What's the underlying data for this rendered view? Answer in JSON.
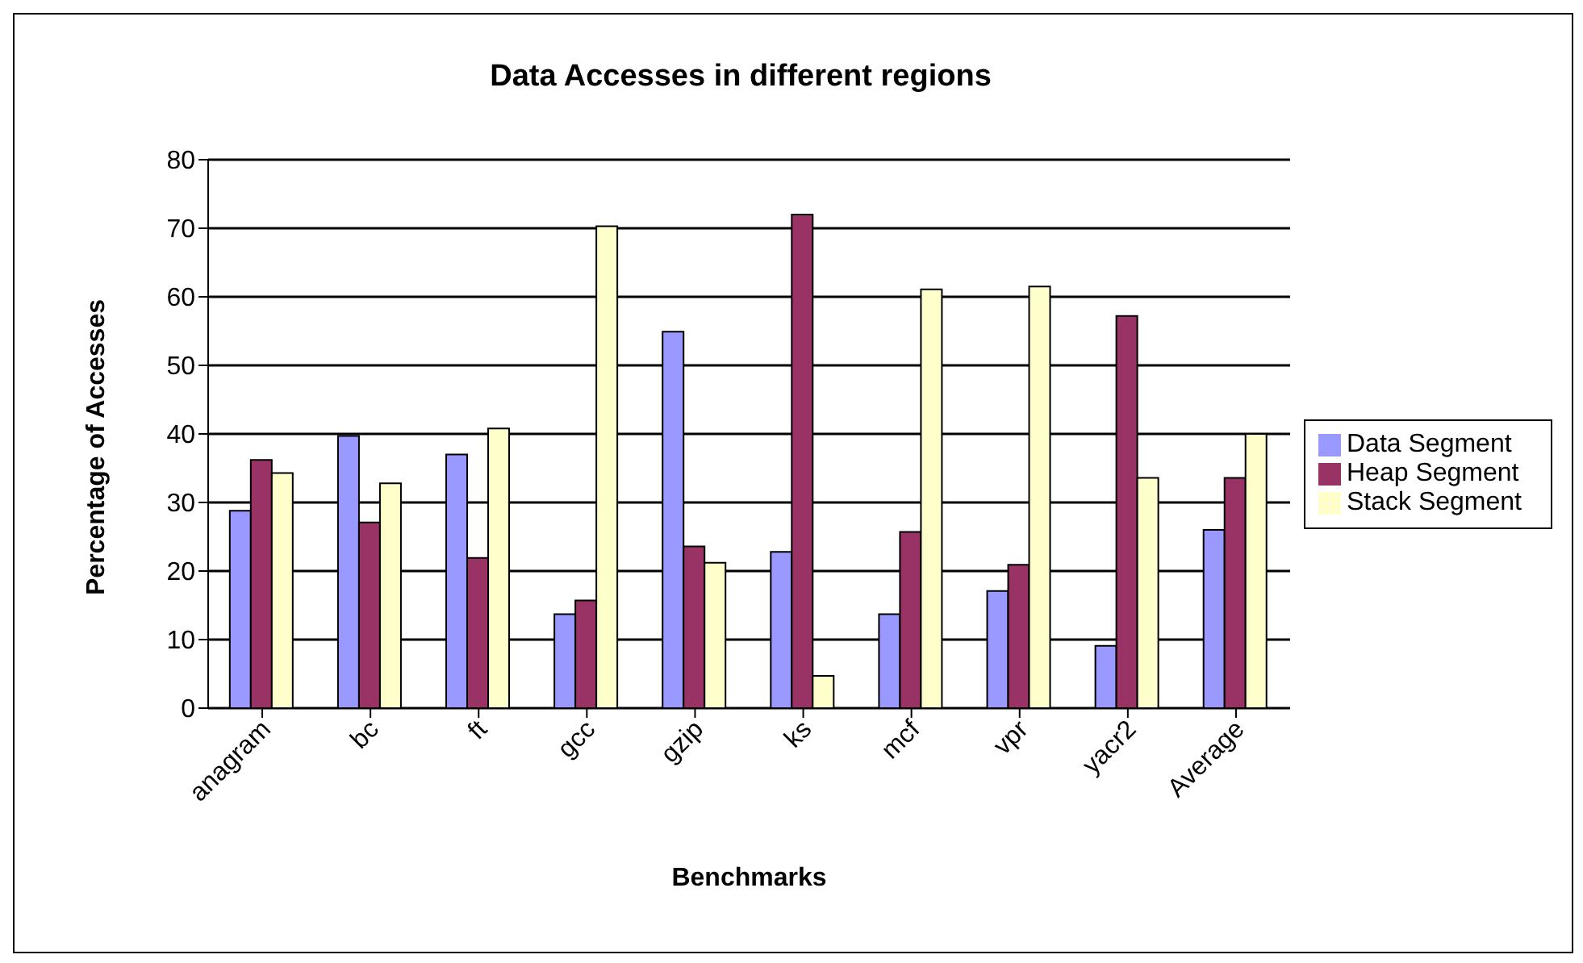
{
  "chart_data": {
    "type": "bar",
    "title": "Data Accesses in different regions",
    "xlabel": "Benchmarks",
    "ylabel": "Percentage of Accesses",
    "categories": [
      "anagram",
      "bc",
      "ft",
      "gcc",
      "gzip",
      "ks",
      "mcf",
      "vpr",
      "yacr2",
      "Average"
    ],
    "series": [
      {
        "name": "Data Segment",
        "color": "#9999ff",
        "values": [
          28.8,
          39.7,
          37.0,
          13.7,
          54.9,
          22.8,
          13.7,
          17.1,
          9.1,
          26.0
        ]
      },
      {
        "name": "Heap Segment",
        "color": "#993366",
        "values": [
          36.2,
          27.1,
          21.9,
          15.7,
          23.6,
          72.0,
          25.7,
          20.9,
          57.2,
          33.6
        ]
      },
      {
        "name": "Stack Segment",
        "color": "#ffffcc",
        "values": [
          34.3,
          32.8,
          40.8,
          70.3,
          21.2,
          4.7,
          61.1,
          61.5,
          33.6,
          40.0
        ]
      }
    ],
    "ylim": [
      0,
      80
    ],
    "yticks": [
      0,
      10,
      20,
      30,
      40,
      50,
      60,
      70,
      80
    ],
    "grid": "y",
    "legend": "right"
  }
}
